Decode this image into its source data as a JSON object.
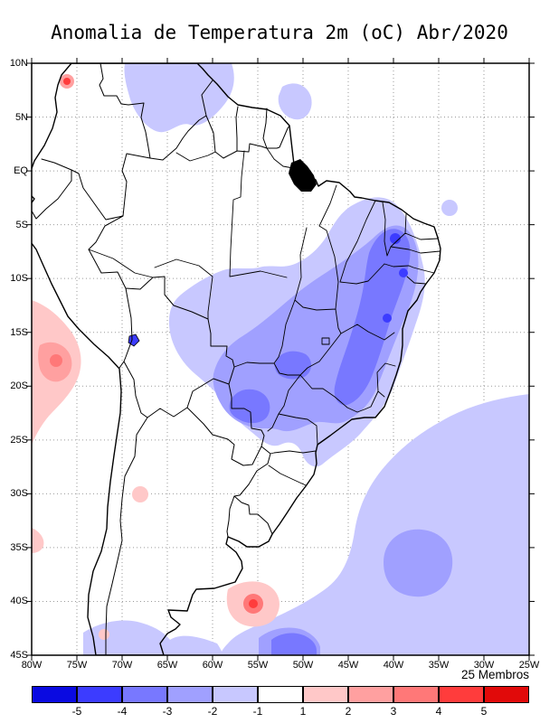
{
  "title": "Anomalia de Temperatura 2m (oC) Abr/2020",
  "axes": {
    "lat_ticks": [
      "10N",
      "5N",
      "EQ",
      "5S",
      "10S",
      "15S",
      "20S",
      "25S",
      "30S",
      "35S",
      "40S",
      "45S"
    ],
    "lon_ticks": [
      "80W",
      "75W",
      "70W",
      "65W",
      "60W",
      "55W",
      "50W",
      "45W",
      "40W",
      "35W",
      "30W",
      "25W"
    ]
  },
  "legend": {
    "members_label": "25 Membros",
    "tick_labels": [
      "-5",
      "-4",
      "-3",
      "-2",
      "-1",
      "1",
      "2",
      "3",
      "4",
      "5"
    ],
    "colors": [
      "#0a0ae1",
      "#3c3cff",
      "#7878ff",
      "#a0a0ff",
      "#c8c8ff",
      "#ffffff",
      "#ffc8c8",
      "#ffa0a0",
      "#ff7878",
      "#ff3c3c",
      "#e10a0a"
    ]
  },
  "chart_data": {
    "type": "heatmap",
    "variable": "Anomalia de Temperatura 2m",
    "units": "oC",
    "period": "Abr/2020",
    "ensemble_members": 25,
    "lon_range_deg_west": [
      80,
      25
    ],
    "lat_range_deg": [
      -45,
      10
    ],
    "contour_levels": [
      -5,
      -4,
      -3,
      -2,
      -1,
      1,
      2,
      3,
      4,
      5
    ],
    "regions": [
      {
        "region": "Central and eastern Brazil (Mato Grosso through Goias/Minas to Bahia)",
        "anomaly_oC": "-2 to -4"
      },
      {
        "region": "Interior Northeast Brazil (Piaui/Ceara/western Bahia)",
        "anomaly_oC": "-3 to -5"
      },
      {
        "region": "Northern Venezuela/Colombia border area and Guianas patches",
        "anomaly_oC": "-1 to -2"
      },
      {
        "region": "Amazon basin southern flank into lowland Bolivia",
        "anomaly_oC": "-1 to -2"
      },
      {
        "region": "Southwest Atlantic (about 30S-45S, 55W-25W)",
        "anomaly_oC": "-1 to -3"
      },
      {
        "region": "Peruvian coast / eastern Pacific (about 12S-25S)",
        "anomaly_oC": "+1 to +3"
      },
      {
        "region": "Atlantic spot near 40S 55W",
        "anomaly_oC": "+1 to +3"
      },
      {
        "region": "Most remaining areas",
        "anomaly_oC": "-1 to +1"
      }
    ]
  }
}
